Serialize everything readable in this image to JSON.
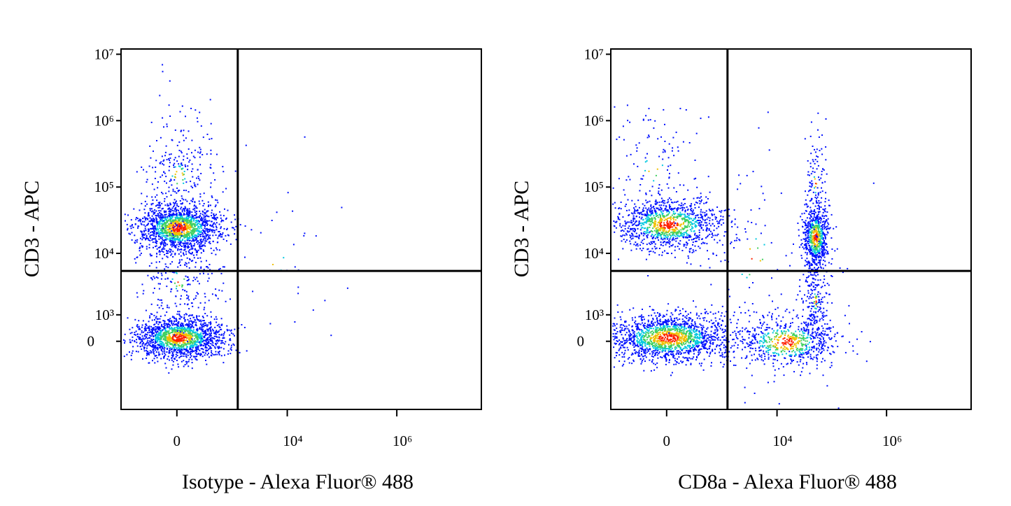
{
  "chart_data": [
    {
      "type": "scatter",
      "x_label": "Isotype - Alexa Fluor® 488",
      "y_label": "CD3 - APC",
      "xscale": "biexponential",
      "yscale": "biexponential",
      "xlim": [
        -1000,
        35000000
      ],
      "ylim": [
        -5000,
        12000000
      ],
      "xticks": [
        0,
        {
          "value": 10000,
          "label": "10⁴"
        },
        {
          "value": 1000000,
          "label": "10⁶"
        }
      ],
      "yticks": [
        0,
        {
          "value": 1000,
          "label": "10³"
        },
        {
          "value": 10000,
          "label": "10⁴"
        },
        {
          "value": 100000,
          "label": "10⁵"
        },
        {
          "value": 1000000,
          "label": "10⁶"
        },
        {
          "value": 10000000,
          "label": "10⁷"
        }
      ],
      "quadrant_gate": {
        "x": 1240,
        "y": 5400
      }
    },
    {
      "type": "scatter",
      "x_label": "CD8a - Alexa Fluor® 488",
      "y_label": "CD3 - APC",
      "xscale": "biexponential",
      "yscale": "biexponential",
      "xlim": [
        -1000,
        35000000
      ],
      "ylim": [
        -5000,
        12000000
      ],
      "xticks": [
        0,
        {
          "value": 10000,
          "label": "10⁴"
        },
        {
          "value": 1000000,
          "label": "10⁶"
        }
      ],
      "yticks": [
        0,
        {
          "value": 1000,
          "label": "10³"
        },
        {
          "value": 10000,
          "label": "10⁴"
        },
        {
          "value": 100000,
          "label": "10⁵"
        },
        {
          "value": 1000000,
          "label": "10⁶"
        },
        {
          "value": 10000000,
          "label": "10⁷"
        }
      ],
      "quadrant_gate": {
        "x": 1240,
        "y": 5400
      }
    }
  ]
}
